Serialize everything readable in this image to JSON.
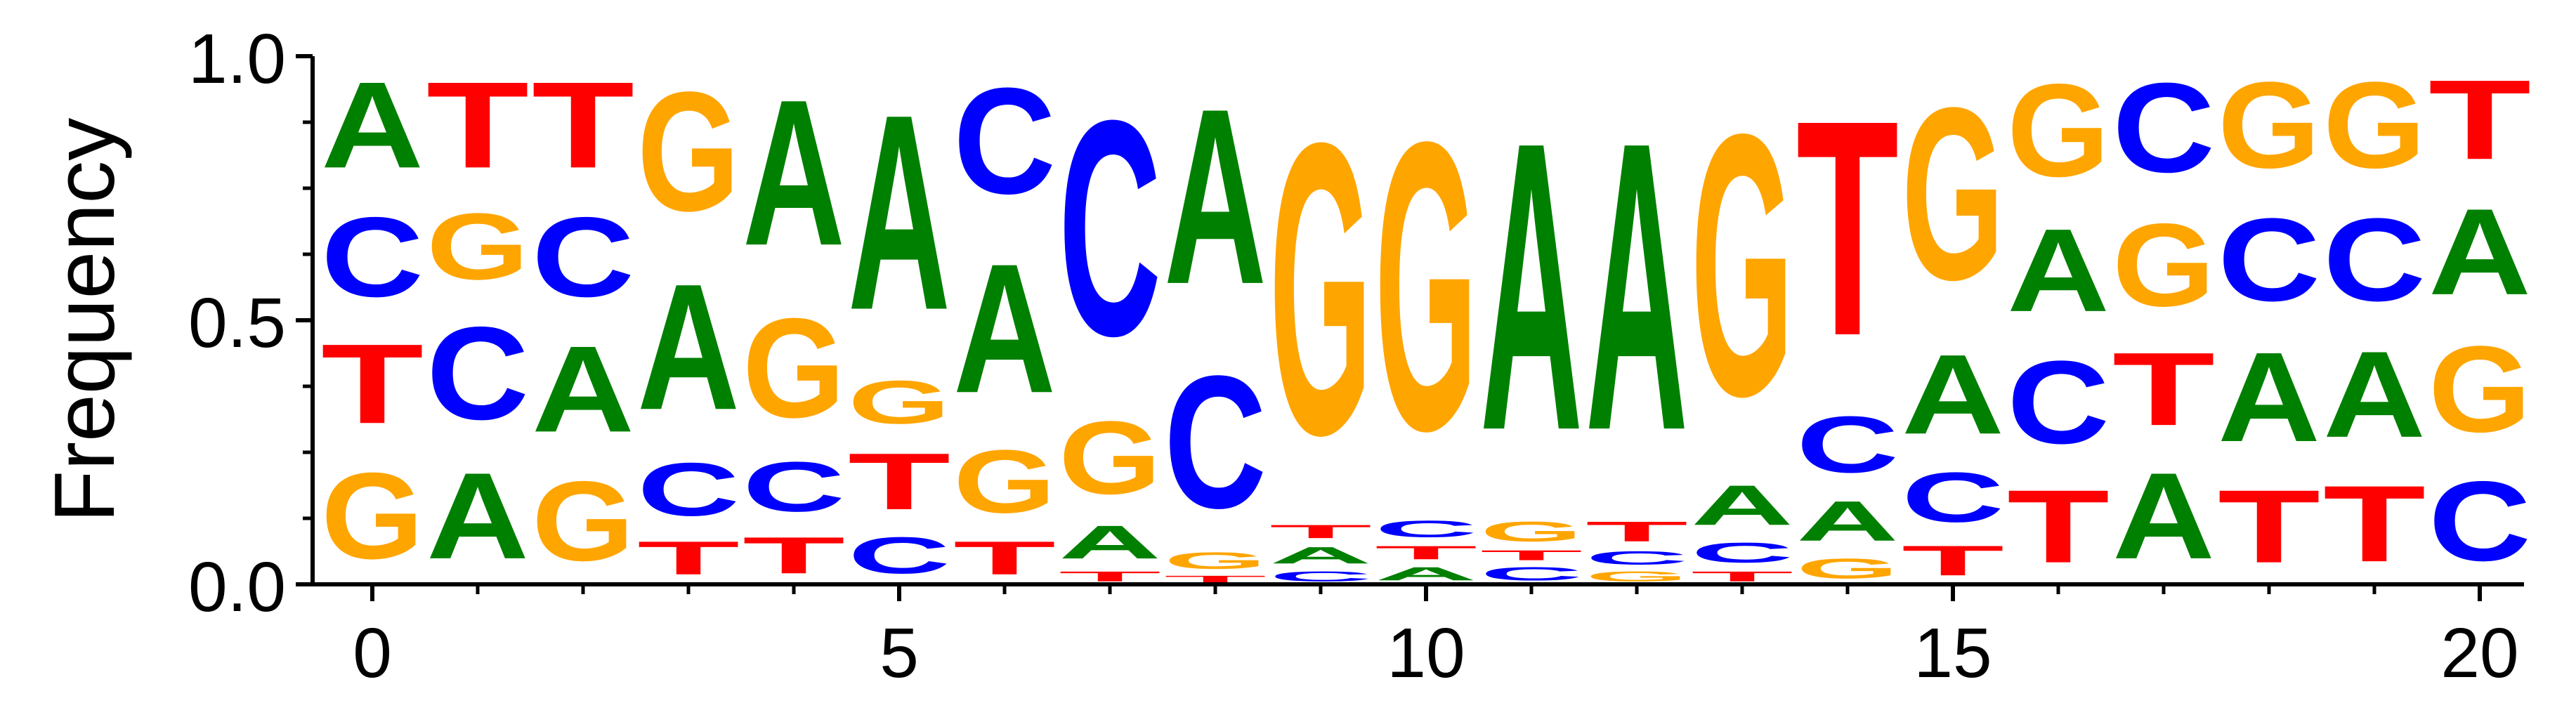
{
  "chart_data": {
    "type": "sequence-logo",
    "ylabel": "Frequency",
    "xlabel": "",
    "ylim": [
      0,
      1
    ],
    "yticks": [
      "0.0",
      "0.5",
      "1.0"
    ],
    "ytick_values": [
      0,
      0.5,
      1
    ],
    "xticks": [
      "0",
      "5",
      "10",
      "15",
      "20"
    ],
    "xtick_values": [
      0,
      5,
      10,
      15,
      20
    ],
    "colors": {
      "A": "#008000",
      "C": "#0000ff",
      "G": "#ffa500",
      "T": "#ff0000"
    },
    "positions": [
      {
        "pos": 0,
        "letters": [
          [
            "G",
            0.26
          ],
          [
            "T",
            0.24
          ],
          [
            "C",
            0.24
          ],
          [
            "A",
            0.26
          ]
        ]
      },
      {
        "pos": 1,
        "letters": [
          [
            "A",
            0.26
          ],
          [
            "C",
            0.28
          ],
          [
            "G",
            0.2
          ],
          [
            "T",
            0.26
          ]
        ]
      },
      {
        "pos": 2,
        "letters": [
          [
            "G",
            0.24
          ],
          [
            "A",
            0.26
          ],
          [
            "C",
            0.24
          ],
          [
            "T",
            0.26
          ]
        ]
      },
      {
        "pos": 3,
        "letters": [
          [
            "T",
            0.1
          ],
          [
            "C",
            0.16
          ],
          [
            "A",
            0.38
          ],
          [
            "G",
            0.36
          ]
        ]
      },
      {
        "pos": 4,
        "letters": [
          [
            "T",
            0.11
          ],
          [
            "C",
            0.15
          ],
          [
            "G",
            0.3
          ],
          [
            "A",
            0.44
          ]
        ]
      },
      {
        "pos": 5,
        "letters": [
          [
            "C",
            0.11
          ],
          [
            "T",
            0.17
          ],
          [
            "G",
            0.13
          ],
          [
            "A",
            0.59
          ]
        ]
      },
      {
        "pos": 6,
        "letters": [
          [
            "T",
            0.1
          ],
          [
            "G",
            0.19
          ],
          [
            "A",
            0.39
          ],
          [
            "C",
            0.32
          ]
        ]
      },
      {
        "pos": 7,
        "letters": [
          [
            "T",
            0.03
          ],
          [
            "A",
            0.1
          ],
          [
            "G",
            0.22
          ],
          [
            "C",
            0.65
          ]
        ]
      },
      {
        "pos": 8,
        "letters": [
          [
            "T",
            0.02
          ],
          [
            "G",
            0.05
          ],
          [
            "C",
            0.4
          ],
          [
            "A",
            0.53
          ]
        ]
      },
      {
        "pos": 9,
        "letters": [
          [
            "C",
            0.03
          ],
          [
            "A",
            0.05
          ],
          [
            "T",
            0.04
          ],
          [
            "G",
            0.88
          ]
        ]
      },
      {
        "pos": 10,
        "letters": [
          [
            "A",
            0.04
          ],
          [
            "T",
            0.04
          ],
          [
            "C",
            0.05
          ],
          [
            "G",
            0.87
          ]
        ]
      },
      {
        "pos": 11,
        "letters": [
          [
            "C",
            0.04
          ],
          [
            "T",
            0.03
          ],
          [
            "G",
            0.06
          ],
          [
            "A",
            0.87
          ]
        ]
      },
      {
        "pos": 12,
        "letters": [
          [
            "G",
            0.03
          ],
          [
            "C",
            0.04
          ],
          [
            "T",
            0.06
          ],
          [
            "A",
            0.87
          ]
        ]
      },
      {
        "pos": 13,
        "letters": [
          [
            "T",
            0.03
          ],
          [
            "C",
            0.06
          ],
          [
            "A",
            0.12
          ],
          [
            "G",
            0.79
          ]
        ]
      },
      {
        "pos": 14,
        "letters": [
          [
            "G",
            0.06
          ],
          [
            "A",
            0.12
          ],
          [
            "C",
            0.17
          ],
          [
            "T",
            0.65
          ]
        ]
      },
      {
        "pos": 15,
        "letters": [
          [
            "T",
            0.09
          ],
          [
            "C",
            0.15
          ],
          [
            "A",
            0.24
          ],
          [
            "G",
            0.52
          ]
        ]
      },
      {
        "pos": 16,
        "letters": [
          [
            "T",
            0.22
          ],
          [
            "C",
            0.25
          ],
          [
            "A",
            0.25
          ],
          [
            "G",
            0.28
          ]
        ]
      },
      {
        "pos": 17,
        "letters": [
          [
            "A",
            0.26
          ],
          [
            "T",
            0.22
          ],
          [
            "G",
            0.25
          ],
          [
            "C",
            0.27
          ]
        ]
      },
      {
        "pos": 18,
        "letters": [
          [
            "T",
            0.22
          ],
          [
            "A",
            0.27
          ],
          [
            "C",
            0.25
          ],
          [
            "G",
            0.26
          ]
        ]
      },
      {
        "pos": 19,
        "letters": [
          [
            "T",
            0.23
          ],
          [
            "A",
            0.26
          ],
          [
            "C",
            0.25
          ],
          [
            "G",
            0.26
          ]
        ]
      },
      {
        "pos": 20,
        "letters": [
          [
            "C",
            0.24
          ],
          [
            "G",
            0.26
          ],
          [
            "A",
            0.26
          ],
          [
            "T",
            0.24
          ]
        ]
      }
    ]
  }
}
